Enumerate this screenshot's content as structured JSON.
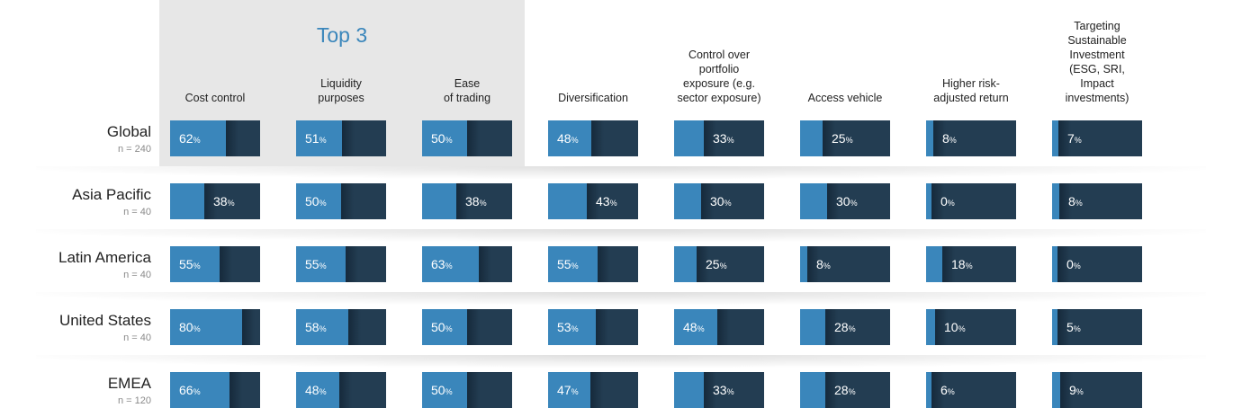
{
  "top3_label": "Top 3",
  "percent_symbol": "%",
  "colors": {
    "fill": "#3a86bb",
    "track": "#233d52",
    "panel": "#e7e7e7",
    "accent_text": "#3a86bb"
  },
  "chart_data": {
    "type": "table",
    "title": "",
    "highlight_group": {
      "label": "Top 3",
      "columns": [
        "Cost control",
        "Liquidity purposes",
        "Ease of trading"
      ]
    },
    "columns": [
      "Cost control",
      "Liquidity\npurposes",
      "Ease\nof trading",
      "Diversification",
      "Control over\nportfolio\nexposure (e.g.\nsector exposure)",
      "Access vehicle",
      "Higher risk-\nadjusted return",
      "Targeting\nSustainable\nInvestment\n(ESG, SRI,\nImpact\ninvestments)"
    ],
    "rows": [
      {
        "region": "Global",
        "n": "n = 240",
        "values": [
          62,
          51,
          50,
          48,
          33,
          25,
          8,
          7
        ]
      },
      {
        "region": "Asia Pacific",
        "n": "n = 40",
        "values": [
          38,
          50,
          38,
          43,
          30,
          30,
          0,
          8
        ]
      },
      {
        "region": "Latin America",
        "n": "n = 40",
        "values": [
          55,
          55,
          63,
          55,
          25,
          8,
          18,
          0
        ]
      },
      {
        "region": "United States",
        "n": "n = 40",
        "values": [
          80,
          58,
          50,
          53,
          48,
          28,
          10,
          5
        ]
      },
      {
        "region": "EMEA",
        "n": "n = 120",
        "values": [
          66,
          48,
          50,
          47,
          33,
          28,
          6,
          9
        ]
      }
    ],
    "value_unit": "%",
    "scale": [
      0,
      100
    ]
  }
}
